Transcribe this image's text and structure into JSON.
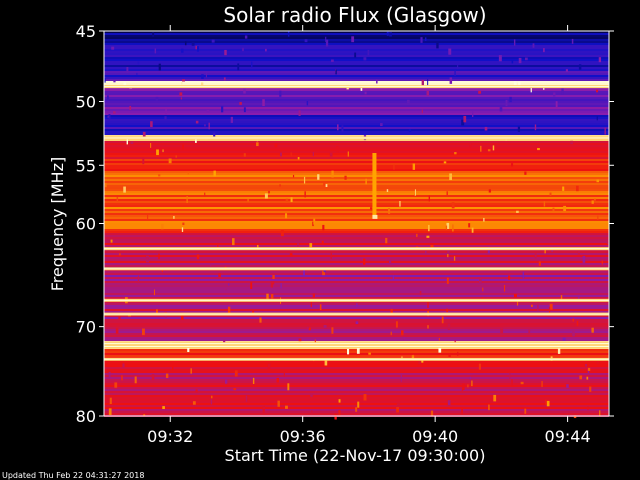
{
  "chart_data": {
    "type": "heatmap",
    "title": "Solar radio Flux (Glasgow)",
    "xlabel": "Start Time (22-Nov-17 09:30:00)",
    "ylabel": "Frequency [MHz]",
    "x_range": [
      "09:30:00",
      "09:45:15"
    ],
    "x_ticks": [
      "09:32",
      "09:36",
      "09:40",
      "09:44"
    ],
    "y_range": [
      45,
      80
    ],
    "y_ticks": [
      45,
      50,
      55,
      60,
      70,
      80
    ],
    "y_scale": "log",
    "colormap": [
      "#00002a",
      "#1010c8",
      "#8a1cae",
      "#ee1010",
      "#ffa400",
      "#ffffe0"
    ],
    "bands": [
      {
        "from": 45.0,
        "to": 45.8,
        "level": 0.12
      },
      {
        "from": 45.8,
        "to": 47.8,
        "level": 0.22
      },
      {
        "from": 47.8,
        "to": 48.5,
        "level": 0.26
      },
      {
        "from": 48.5,
        "to": 49.0,
        "level": 0.96
      },
      {
        "from": 49.0,
        "to": 51.0,
        "level": 0.34
      },
      {
        "from": 51.0,
        "to": 52.6,
        "level": 0.25
      },
      {
        "from": 52.6,
        "to": 53.0,
        "level": 0.9
      },
      {
        "from": 53.0,
        "to": 55.5,
        "level": 0.6
      },
      {
        "from": 55.5,
        "to": 60.5,
        "level": 0.7
      },
      {
        "from": 60.5,
        "to": 62.0,
        "level": 0.58
      },
      {
        "from": 62.0,
        "to": 64.0,
        "level": 0.52
      },
      {
        "from": 64.0,
        "to": 66.0,
        "level": 0.46
      },
      {
        "from": 66.0,
        "to": 68.5,
        "level": 0.5
      },
      {
        "from": 68.5,
        "to": 71.5,
        "level": 0.48
      },
      {
        "from": 71.5,
        "to": 72.4,
        "level": 0.94
      },
      {
        "from": 72.4,
        "to": 74.0,
        "level": 0.62
      },
      {
        "from": 74.0,
        "to": 77.0,
        "level": 0.52
      },
      {
        "from": 77.0,
        "to": 80.0,
        "level": 0.56
      }
    ],
    "bright_lines_mhz": [
      48.9,
      52.8,
      62.3,
      64.2,
      67.3,
      68.7,
      71.8,
      72.1,
      73.5
    ],
    "features": [
      {
        "type": "burst",
        "time": "09:38:10",
        "freq_from": 54.0,
        "freq_to": 59.5
      }
    ]
  },
  "footer": {
    "updated": "Updated Thu Feb 22 04:31:27 2018"
  }
}
